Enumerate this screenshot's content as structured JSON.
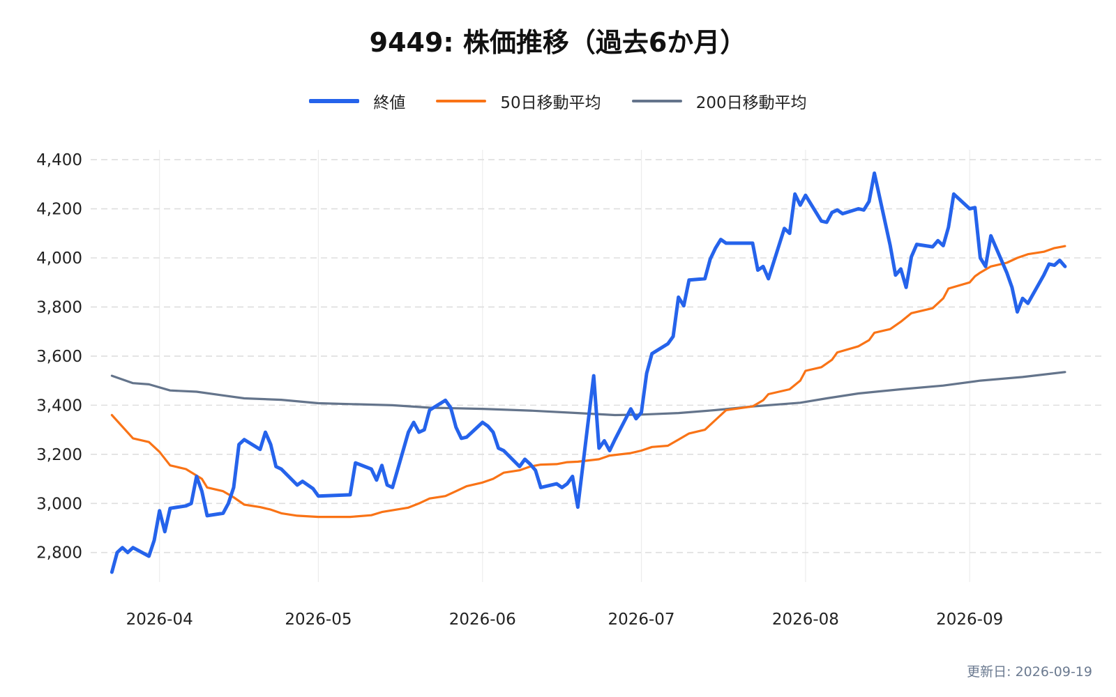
{
  "chart_data": {
    "type": "line",
    "title": "9449: 株価推移（過去6か月）",
    "x_tick_labels": [
      "2026-04",
      "2026-05",
      "2026-06",
      "2026-07",
      "2026-08",
      "2026-09"
    ],
    "x_ticks": [
      "2026-04-01",
      "2026-05-01",
      "2026-06-01",
      "2026-07-01",
      "2026-08-01",
      "2026-09-01"
    ],
    "xlim": [
      "2026-03-19",
      "2026-09-26"
    ],
    "y_ticks": [
      2800,
      3000,
      3200,
      3400,
      3600,
      3800,
      4000,
      4200,
      4400
    ],
    "y_tick_labels": [
      "2,800",
      "3,000",
      "3,200",
      "3,400",
      "3,600",
      "3,800",
      "4,000",
      "4,200",
      "4,400"
    ],
    "ylim": [
      2680,
      4440
    ],
    "grid": "horizontal dashed",
    "legend_position": "top-center",
    "series": [
      {
        "name": "終値",
        "color": "#2563eb",
        "points": [
          [
            "2026-03-23",
            2720
          ],
          [
            "2026-03-24",
            2800
          ],
          [
            "2026-03-25",
            2820
          ],
          [
            "2026-03-26",
            2800
          ],
          [
            "2026-03-27",
            2820
          ],
          [
            "2026-03-30",
            2785
          ],
          [
            "2026-03-31",
            2850
          ],
          [
            "2026-04-01",
            2970
          ],
          [
            "2026-04-02",
            2885
          ],
          [
            "2026-04-03",
            2980
          ],
          [
            "2026-04-06",
            2990
          ],
          [
            "2026-04-07",
            3000
          ],
          [
            "2026-04-08",
            3110
          ],
          [
            "2026-04-09",
            3050
          ],
          [
            "2026-04-10",
            2950
          ],
          [
            "2026-04-13",
            2960
          ],
          [
            "2026-04-14",
            3000
          ],
          [
            "2026-04-15",
            3065
          ],
          [
            "2026-04-16",
            3240
          ],
          [
            "2026-04-17",
            3260
          ],
          [
            "2026-04-20",
            3220
          ],
          [
            "2026-04-21",
            3290
          ],
          [
            "2026-04-22",
            3240
          ],
          [
            "2026-04-23",
            3150
          ],
          [
            "2026-04-24",
            3140
          ],
          [
            "2026-04-27",
            3075
          ],
          [
            "2026-04-28",
            3090
          ],
          [
            "2026-04-30",
            3060
          ],
          [
            "2026-05-01",
            3030
          ],
          [
            "2026-05-07",
            3035
          ],
          [
            "2026-05-08",
            3165
          ],
          [
            "2026-05-11",
            3140
          ],
          [
            "2026-05-12",
            3095
          ],
          [
            "2026-05-13",
            3155
          ],
          [
            "2026-05-14",
            3075
          ],
          [
            "2026-05-15",
            3065
          ],
          [
            "2026-05-18",
            3290
          ],
          [
            "2026-05-19",
            3330
          ],
          [
            "2026-05-20",
            3290
          ],
          [
            "2026-05-21",
            3300
          ],
          [
            "2026-05-22",
            3380
          ],
          [
            "2026-05-25",
            3420
          ],
          [
            "2026-05-26",
            3390
          ],
          [
            "2026-05-27",
            3310
          ],
          [
            "2026-05-28",
            3265
          ],
          [
            "2026-05-29",
            3270
          ],
          [
            "2026-06-01",
            3330
          ],
          [
            "2026-06-02",
            3315
          ],
          [
            "2026-06-03",
            3290
          ],
          [
            "2026-06-04",
            3225
          ],
          [
            "2026-06-05",
            3215
          ],
          [
            "2026-06-08",
            3150
          ],
          [
            "2026-06-09",
            3180
          ],
          [
            "2026-06-10",
            3160
          ],
          [
            "2026-06-11",
            3135
          ],
          [
            "2026-06-12",
            3065
          ],
          [
            "2026-06-15",
            3080
          ],
          [
            "2026-06-16",
            3065
          ],
          [
            "2026-06-17",
            3080
          ],
          [
            "2026-06-18",
            3110
          ],
          [
            "2026-06-19",
            2985
          ],
          [
            "2026-06-22",
            3520
          ],
          [
            "2026-06-23",
            3225
          ],
          [
            "2026-06-24",
            3255
          ],
          [
            "2026-06-25",
            3215
          ],
          [
            "2026-06-26",
            3260
          ],
          [
            "2026-06-29",
            3385
          ],
          [
            "2026-06-30",
            3345
          ],
          [
            "2026-07-01",
            3370
          ],
          [
            "2026-07-02",
            3530
          ],
          [
            "2026-07-03",
            3610
          ],
          [
            "2026-07-06",
            3650
          ],
          [
            "2026-07-07",
            3680
          ],
          [
            "2026-07-08",
            3840
          ],
          [
            "2026-07-09",
            3805
          ],
          [
            "2026-07-10",
            3910
          ],
          [
            "2026-07-13",
            3915
          ],
          [
            "2026-07-14",
            3995
          ],
          [
            "2026-07-15",
            4040
          ],
          [
            "2026-07-16",
            4075
          ],
          [
            "2026-07-17",
            4060
          ],
          [
            "2026-07-22",
            4060
          ],
          [
            "2026-07-23",
            3950
          ],
          [
            "2026-07-24",
            3965
          ],
          [
            "2026-07-25",
            3915
          ],
          [
            "2026-07-28",
            4120
          ],
          [
            "2026-07-29",
            4100
          ],
          [
            "2026-07-30",
            4260
          ],
          [
            "2026-07-31",
            4215
          ],
          [
            "2026-08-01",
            4255
          ],
          [
            "2026-08-04",
            4150
          ],
          [
            "2026-08-05",
            4145
          ],
          [
            "2026-08-06",
            4185
          ],
          [
            "2026-08-07",
            4195
          ],
          [
            "2026-08-08",
            4180
          ],
          [
            "2026-08-11",
            4200
          ],
          [
            "2026-08-12",
            4195
          ],
          [
            "2026-08-13",
            4230
          ],
          [
            "2026-08-14",
            4345
          ],
          [
            "2026-08-17",
            4050
          ],
          [
            "2026-08-18",
            3930
          ],
          [
            "2026-08-19",
            3955
          ],
          [
            "2026-08-20",
            3880
          ],
          [
            "2026-08-21",
            4005
          ],
          [
            "2026-08-22",
            4055
          ],
          [
            "2026-08-25",
            4045
          ],
          [
            "2026-08-26",
            4070
          ],
          [
            "2026-08-27",
            4050
          ],
          [
            "2026-08-28",
            4125
          ],
          [
            "2026-08-29",
            4260
          ],
          [
            "2026-09-01",
            4200
          ],
          [
            "2026-09-02",
            4205
          ],
          [
            "2026-09-03",
            4000
          ],
          [
            "2026-09-04",
            3965
          ],
          [
            "2026-09-05",
            4090
          ],
          [
            "2026-09-08",
            3940
          ],
          [
            "2026-09-09",
            3880
          ],
          [
            "2026-09-10",
            3780
          ],
          [
            "2026-09-11",
            3835
          ],
          [
            "2026-09-12",
            3815
          ],
          [
            "2026-09-15",
            3930
          ],
          [
            "2026-09-16",
            3975
          ],
          [
            "2026-09-17",
            3970
          ],
          [
            "2026-09-18",
            3990
          ],
          [
            "2026-09-19",
            3965
          ]
        ]
      },
      {
        "name": "50日移動平均",
        "color": "#f97316",
        "points": [
          [
            "2026-03-23",
            3360
          ],
          [
            "2026-03-27",
            3265
          ],
          [
            "2026-03-30",
            3250
          ],
          [
            "2026-04-01",
            3210
          ],
          [
            "2026-04-03",
            3155
          ],
          [
            "2026-04-06",
            3140
          ],
          [
            "2026-04-09",
            3100
          ],
          [
            "2026-04-10",
            3065
          ],
          [
            "2026-04-13",
            3050
          ],
          [
            "2026-04-15",
            3025
          ],
          [
            "2026-04-17",
            2995
          ],
          [
            "2026-04-20",
            2985
          ],
          [
            "2026-04-22",
            2975
          ],
          [
            "2026-04-24",
            2960
          ],
          [
            "2026-04-27",
            2950
          ],
          [
            "2026-05-01",
            2945
          ],
          [
            "2026-05-07",
            2945
          ],
          [
            "2026-05-11",
            2952
          ],
          [
            "2026-05-13",
            2965
          ],
          [
            "2026-05-15",
            2972
          ],
          [
            "2026-05-18",
            2983
          ],
          [
            "2026-05-20",
            3000
          ],
          [
            "2026-05-22",
            3020
          ],
          [
            "2026-05-25",
            3030
          ],
          [
            "2026-05-27",
            3050
          ],
          [
            "2026-05-29",
            3070
          ],
          [
            "2026-06-01",
            3085
          ],
          [
            "2026-06-03",
            3100
          ],
          [
            "2026-06-05",
            3125
          ],
          [
            "2026-06-08",
            3135
          ],
          [
            "2026-06-10",
            3150
          ],
          [
            "2026-06-12",
            3158
          ],
          [
            "2026-06-15",
            3160
          ],
          [
            "2026-06-17",
            3168
          ],
          [
            "2026-06-19",
            3170
          ],
          [
            "2026-06-23",
            3180
          ],
          [
            "2026-06-25",
            3195
          ],
          [
            "2026-06-29",
            3205
          ],
          [
            "2026-07-01",
            3215
          ],
          [
            "2026-07-03",
            3230
          ],
          [
            "2026-07-06",
            3235
          ],
          [
            "2026-07-08",
            3260
          ],
          [
            "2026-07-10",
            3285
          ],
          [
            "2026-07-13",
            3300
          ],
          [
            "2026-07-15",
            3340
          ],
          [
            "2026-07-17",
            3380
          ],
          [
            "2026-07-22",
            3395
          ],
          [
            "2026-07-24",
            3420
          ],
          [
            "2026-07-25",
            3445
          ],
          [
            "2026-07-29",
            3465
          ],
          [
            "2026-07-31",
            3500
          ],
          [
            "2026-08-01",
            3540
          ],
          [
            "2026-08-04",
            3555
          ],
          [
            "2026-08-06",
            3585
          ],
          [
            "2026-08-07",
            3615
          ],
          [
            "2026-08-11",
            3640
          ],
          [
            "2026-08-13",
            3665
          ],
          [
            "2026-08-14",
            3695
          ],
          [
            "2026-08-17",
            3710
          ],
          [
            "2026-08-19",
            3740
          ],
          [
            "2026-08-21",
            3775
          ],
          [
            "2026-08-25",
            3795
          ],
          [
            "2026-08-27",
            3835
          ],
          [
            "2026-08-28",
            3875
          ],
          [
            "2026-09-01",
            3900
          ],
          [
            "2026-09-02",
            3925
          ],
          [
            "2026-09-03",
            3940
          ],
          [
            "2026-09-05",
            3965
          ],
          [
            "2026-09-08",
            3980
          ],
          [
            "2026-09-10",
            4000
          ],
          [
            "2026-09-12",
            4015
          ],
          [
            "2026-09-15",
            4025
          ],
          [
            "2026-09-17",
            4040
          ],
          [
            "2026-09-19",
            4048
          ]
        ]
      },
      {
        "name": "200日移動平均",
        "color": "#64748b",
        "points": [
          [
            "2026-03-23",
            3520
          ],
          [
            "2026-03-27",
            3490
          ],
          [
            "2026-03-30",
            3485
          ],
          [
            "2026-04-03",
            3460
          ],
          [
            "2026-04-08",
            3455
          ],
          [
            "2026-04-13",
            3440
          ],
          [
            "2026-04-17",
            3428
          ],
          [
            "2026-04-24",
            3422
          ],
          [
            "2026-05-01",
            3408
          ],
          [
            "2026-05-15",
            3400
          ],
          [
            "2026-05-22",
            3390
          ],
          [
            "2026-06-01",
            3385
          ],
          [
            "2026-06-10",
            3378
          ],
          [
            "2026-06-19",
            3368
          ],
          [
            "2026-06-26",
            3360
          ],
          [
            "2026-07-01",
            3362
          ],
          [
            "2026-07-08",
            3368
          ],
          [
            "2026-07-15",
            3380
          ],
          [
            "2026-07-22",
            3395
          ],
          [
            "2026-07-31",
            3410
          ],
          [
            "2026-08-05",
            3428
          ],
          [
            "2026-08-11",
            3448
          ],
          [
            "2026-08-19",
            3465
          ],
          [
            "2026-08-27",
            3480
          ],
          [
            "2026-09-03",
            3500
          ],
          [
            "2026-09-11",
            3515
          ],
          [
            "2026-09-19",
            3535
          ]
        ]
      }
    ]
  },
  "footer": {
    "updated_label": "更新日: 2026-09-19"
  }
}
